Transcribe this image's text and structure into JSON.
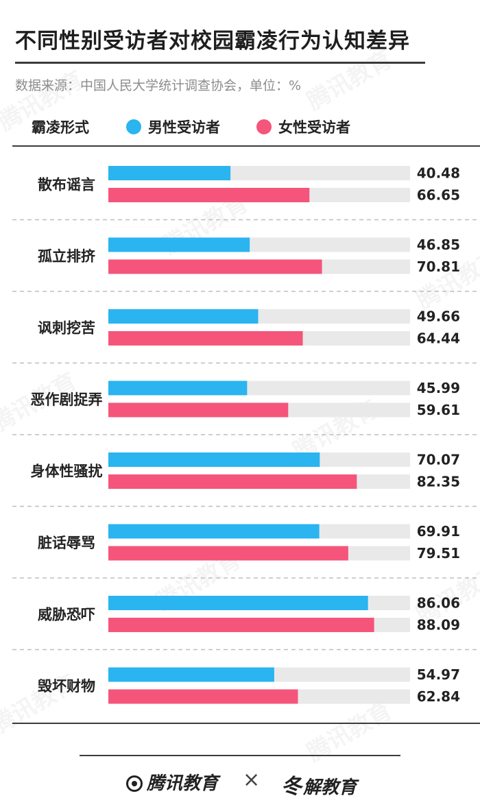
{
  "title": "不同性别受访者对校园霸凌行为认知差异",
  "source": "数据来源：中国人民大学统计调查协会，单位：%",
  "legend": {
    "category_label": "霸凌形式",
    "male_label": "男性受访者",
    "female_label": "女性受访者"
  },
  "colors": {
    "male": "#2ab4f0",
    "female": "#f5557a",
    "track": "#e9e9e9",
    "divider": "#bdbdbd"
  },
  "chart_data": {
    "type": "bar",
    "orientation": "horizontal",
    "categories": [
      "散布谣言",
      "孤立排挤",
      "讽刺挖苦",
      "恶作剧捉弄",
      "身体性骚扰",
      "脏话辱骂",
      "威胁恐吓",
      "毁坏财物"
    ],
    "series": [
      {
        "name": "男性受访者",
        "color": "#2ab4f0",
        "values": [
          40.48,
          46.85,
          49.66,
          45.99,
          70.07,
          69.91,
          86.06,
          54.97
        ]
      },
      {
        "name": "女性受访者",
        "color": "#f5557a",
        "values": [
          66.65,
          70.81,
          64.44,
          59.61,
          82.35,
          79.51,
          88.09,
          62.84
        ]
      }
    ],
    "xlim": [
      0,
      100
    ],
    "unit": "%",
    "legend_position": "top-left"
  },
  "footer": {
    "brand_left": "腾讯教育",
    "separator": "×",
    "brand_right": "解教育",
    "brand_right_icon": "冬"
  },
  "watermark_text": "腾讯教育"
}
